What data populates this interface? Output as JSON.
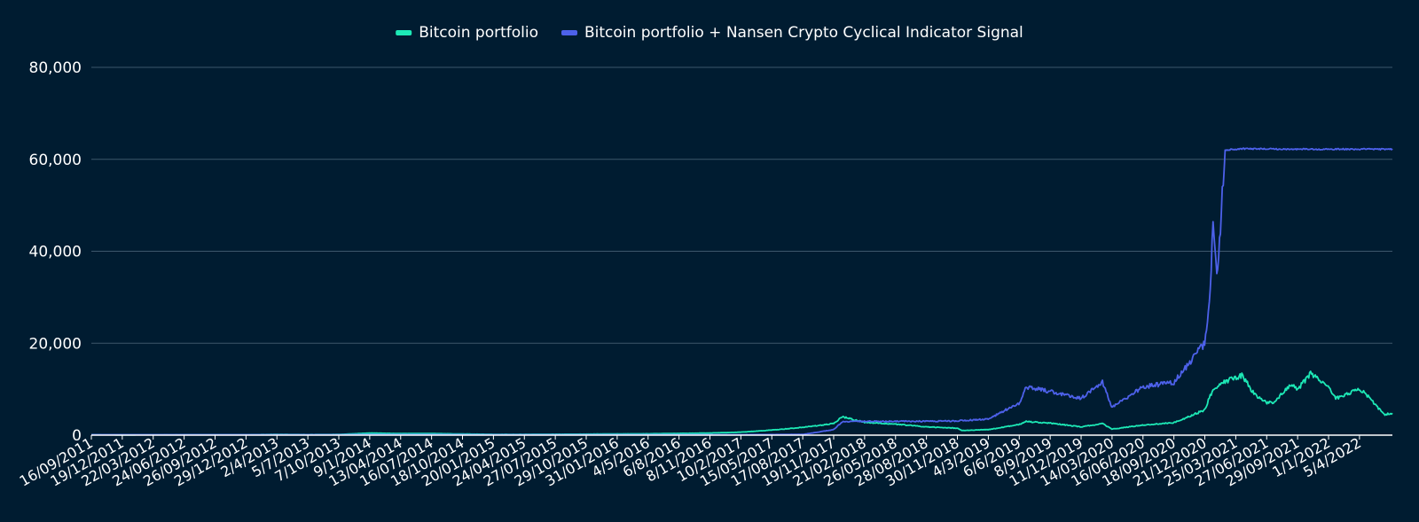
{
  "chart_data": {
    "type": "line",
    "title": "",
    "xlabel": "",
    "ylabel": "",
    "ylim": [
      0,
      80000
    ],
    "yticks": [
      {
        "value": 0,
        "label": "0"
      },
      {
        "value": 20000,
        "label": "20,000"
      },
      {
        "value": 40000,
        "label": "40,000"
      },
      {
        "value": 60000,
        "label": "60,000"
      },
      {
        "value": 80000,
        "label": "80,000"
      }
    ],
    "grid": true,
    "legend_position": "top-center",
    "x_range": [
      "16/09/2011",
      "14/07/2022"
    ],
    "xticks": [
      "16/09/2011",
      "19/12/2011",
      "22/03/2012",
      "24/06/2012",
      "26/09/2012",
      "29/12/2012",
      "2/4/2013",
      "5/7/2013",
      "7/10/2013",
      "9/1/2014",
      "13/04/2014",
      "16/07/2014",
      "18/10/2014",
      "20/01/2015",
      "24/04/2015",
      "27/07/2015",
      "29/10/2015",
      "31/01/2016",
      "4/5/2016",
      "6/8/2016",
      "8/11/2016",
      "10/2/2017",
      "15/05/2017",
      "17/08/2017",
      "19/11/2017",
      "21/02/2018",
      "26/05/2018",
      "28/08/2018",
      "30/11/2018",
      "4/3/2019",
      "6/6/2019",
      "8/9/2019",
      "11/12/2019",
      "14/03/2020",
      "16/06/2020",
      "18/09/2020",
      "21/12/2020",
      "25/03/2021",
      "27/06/2021",
      "29/09/2021",
      "1/1/2022",
      "5/4/2022"
    ],
    "series": [
      {
        "name": "Bitcoin portfolio",
        "color": "#1de9b6",
        "points": [
          [
            "16/09/2011",
            100
          ],
          [
            "19/12/2011",
            60
          ],
          [
            "22/03/2012",
            80
          ],
          [
            "24/06/2012",
            90
          ],
          [
            "26/09/2012",
            100
          ],
          [
            "29/12/2012",
            100
          ],
          [
            "2/4/2013",
            150
          ],
          [
            "5/7/2013",
            120
          ],
          [
            "7/10/2013",
            150
          ],
          [
            "9/1/2014",
            450
          ],
          [
            "13/04/2014",
            350
          ],
          [
            "16/07/2014",
            350
          ],
          [
            "18/10/2014",
            250
          ],
          [
            "20/01/2015",
            180
          ],
          [
            "24/04/2015",
            180
          ],
          [
            "27/07/2015",
            200
          ],
          [
            "29/10/2015",
            220
          ],
          [
            "31/01/2016",
            270
          ],
          [
            "4/5/2016",
            300
          ],
          [
            "6/8/2016",
            380
          ],
          [
            "8/11/2016",
            460
          ],
          [
            "10/2/2017",
            650
          ],
          [
            "15/05/2017",
            1100
          ],
          [
            "17/08/2017",
            1700
          ],
          [
            "19/11/2017",
            2500
          ],
          [
            "15/12/2017",
            4000
          ],
          [
            "21/02/2018",
            2800
          ],
          [
            "26/05/2018",
            2400
          ],
          [
            "28/08/2018",
            1800
          ],
          [
            "30/11/2018",
            1500
          ],
          [
            "15/12/2018",
            1000
          ],
          [
            "4/3/2019",
            1200
          ],
          [
            "6/6/2019",
            2300
          ],
          [
            "26/06/2019",
            3000
          ],
          [
            "8/9/2019",
            2600
          ],
          [
            "11/12/2019",
            1800
          ],
          [
            "14/02/2020",
            2500
          ],
          [
            "14/03/2020",
            1300
          ],
          [
            "16/06/2020",
            2200
          ],
          [
            "18/09/2020",
            2700
          ],
          [
            "21/12/2020",
            5500
          ],
          [
            "8/1/2021",
            9000
          ],
          [
            "14/02/2021",
            11500
          ],
          [
            "14/04/2021",
            13000
          ],
          [
            "19/05/2021",
            9000
          ],
          [
            "27/06/2021",
            7000
          ],
          [
            "20/07/2021",
            7200
          ],
          [
            "6/9/2021",
            11000
          ],
          [
            "29/09/2021",
            10000
          ],
          [
            "9/11/2021",
            13500
          ],
          [
            "1/1/2022",
            10500
          ],
          [
            "23/01/2022",
            8000
          ],
          [
            "5/4/2022",
            10000
          ],
          [
            "1/5/2022",
            8500
          ],
          [
            "18/06/2022",
            4500
          ],
          [
            "14/07/2022",
            4700
          ]
        ]
      },
      {
        "name": "Bitcoin portfolio + Nansen Crypto Cyclical Indicator Signal",
        "color": "#4d61ea",
        "points": [
          [
            "16/09/2011",
            100
          ],
          [
            "22/03/2012",
            100
          ],
          [
            "29/12/2012",
            100
          ],
          [
            "7/10/2013",
            100
          ],
          [
            "9/1/2014",
            120
          ],
          [
            "20/01/2015",
            100
          ],
          [
            "29/10/2015",
            100
          ],
          [
            "4/5/2016",
            100
          ],
          [
            "10/2/2017",
            100
          ],
          [
            "17/08/2017",
            150
          ],
          [
            "19/11/2017",
            1200
          ],
          [
            "15/12/2017",
            2900
          ],
          [
            "21/02/2018",
            3000
          ],
          [
            "28/08/2018",
            3000
          ],
          [
            "30/11/2018",
            3100
          ],
          [
            "4/3/2019",
            3500
          ],
          [
            "6/6/2019",
            7000
          ],
          [
            "26/06/2019",
            10500
          ],
          [
            "8/9/2019",
            9500
          ],
          [
            "11/12/2019",
            8000
          ],
          [
            "14/02/2020",
            11500
          ],
          [
            "14/03/2020",
            6000
          ],
          [
            "16/06/2020",
            10500
          ],
          [
            "18/09/2020",
            11500
          ],
          [
            "21/12/2020",
            20000
          ],
          [
            "8/1/2021",
            32000
          ],
          [
            "14/01/2021",
            46000
          ],
          [
            "28/01/2021",
            34000
          ],
          [
            "10/2/2021",
            50000
          ],
          [
            "20/02/2021",
            62000
          ],
          [
            "14/04/2021",
            62300
          ],
          [
            "29/09/2021",
            62200
          ],
          [
            "1/1/2022",
            62200
          ],
          [
            "14/07/2022",
            62200
          ]
        ]
      }
    ]
  }
}
